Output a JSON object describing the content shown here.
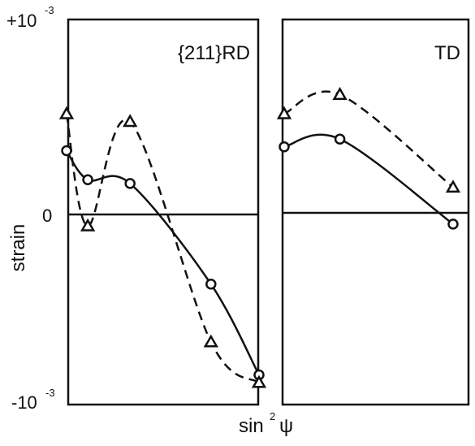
{
  "chart_data": {
    "type": "line",
    "ylabel": "strain",
    "xlabel": "sin²ψ",
    "xlabel_parts": {
      "main": "sin",
      "sup": "2",
      "tail": "ψ"
    },
    "ylim": [
      -0.001,
      0.001
    ],
    "y_ticks": [
      {
        "value": 0.001,
        "base": "+10",
        "exp": "-3"
      },
      {
        "value": 0,
        "base": "0",
        "exp": ""
      },
      {
        "value": -0.001,
        "base": "-10",
        "exp": "-3"
      }
    ],
    "panels": [
      {
        "label": "{211}RD",
        "xlim": [
          0,
          1
        ],
        "series": [
          {
            "marker": "circle",
            "line": "solid",
            "x": [
              0.0,
              0.11,
              0.33,
              0.75,
              1.0
            ],
            "y": [
              0.00033,
              0.00018,
              0.00016,
              -0.00036,
              -0.00083
            ]
          },
          {
            "marker": "triangle",
            "line": "dashed",
            "x": [
              0.0,
              0.11,
              0.33,
              0.75,
              1.0
            ],
            "y": [
              0.00052,
              -6e-05,
              0.00048,
              -0.00066,
              -0.00087
            ]
          }
        ]
      },
      {
        "label": "TD",
        "xlim": [
          0,
          1
        ],
        "series": [
          {
            "marker": "circle",
            "line": "solid",
            "x": [
              0.0,
              0.33,
              1.0
            ],
            "y": [
              0.00035,
              0.00039,
              -5e-05
            ]
          },
          {
            "marker": "triangle",
            "line": "dashed",
            "x": [
              0.0,
              0.33,
              1.0
            ],
            "y": [
              0.00052,
              0.00062,
              0.00014
            ]
          }
        ]
      }
    ]
  }
}
